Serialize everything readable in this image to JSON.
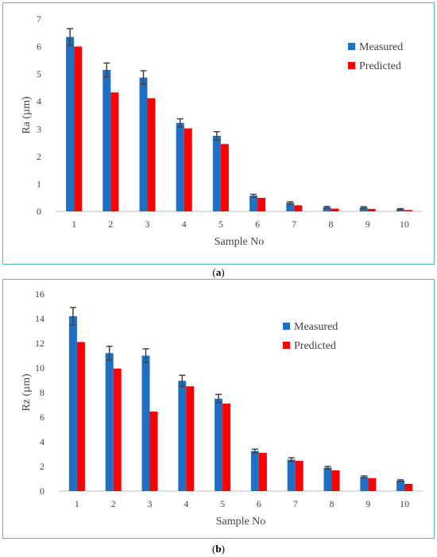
{
  "figure": {
    "captions": [
      "a",
      "b"
    ]
  },
  "colors": {
    "measured": "#1f6fc5",
    "predicted": "#ff0000",
    "error_bar": "#444444",
    "frame": "#4fb8d8"
  },
  "chart_data": [
    {
      "type": "bar",
      "panel": "a",
      "categories": [
        "1",
        "2",
        "3",
        "4",
        "5",
        "6",
        "7",
        "8",
        "9",
        "10"
      ],
      "series": [
        {
          "name": "Measured",
          "values": [
            6.35,
            5.15,
            4.87,
            3.22,
            2.75,
            0.57,
            0.31,
            0.15,
            0.14,
            0.08
          ],
          "errors": [
            0.3,
            0.25,
            0.25,
            0.15,
            0.15,
            0.05,
            0.04,
            0.03,
            0.03,
            0.02
          ]
        },
        {
          "name": "Predicted",
          "values": [
            6.0,
            4.33,
            4.12,
            3.02,
            2.45,
            0.49,
            0.22,
            0.1,
            0.09,
            0.05
          ]
        }
      ],
      "xlabel": "Sample No",
      "ylabel": "Ra (µm)",
      "ylim": [
        0,
        7
      ],
      "yticks": [
        "0",
        "1",
        "2",
        "3",
        "4",
        "5",
        "6",
        "7"
      ],
      "legend": "right"
    },
    {
      "type": "bar",
      "panel": "b",
      "categories": [
        "1",
        "2",
        "3",
        "4",
        "5",
        "6",
        "7",
        "8",
        "9",
        "10"
      ],
      "series": [
        {
          "name": "Measured",
          "values": [
            14.2,
            11.2,
            11.0,
            8.95,
            7.5,
            3.25,
            2.55,
            1.9,
            1.15,
            0.85
          ],
          "errors": [
            0.7,
            0.55,
            0.55,
            0.45,
            0.35,
            0.15,
            0.15,
            0.1,
            0.08,
            0.06
          ]
        },
        {
          "name": "Predicted",
          "values": [
            12.1,
            9.95,
            6.45,
            8.5,
            7.1,
            3.1,
            2.45,
            1.68,
            1.05,
            0.58
          ]
        }
      ],
      "xlabel": "Sample No",
      "ylabel": "Rz (µm)",
      "ylim": [
        0,
        16
      ],
      "yticks": [
        "0",
        "2",
        "4",
        "6",
        "8",
        "10",
        "12",
        "14",
        "16"
      ],
      "legend": "right"
    }
  ]
}
